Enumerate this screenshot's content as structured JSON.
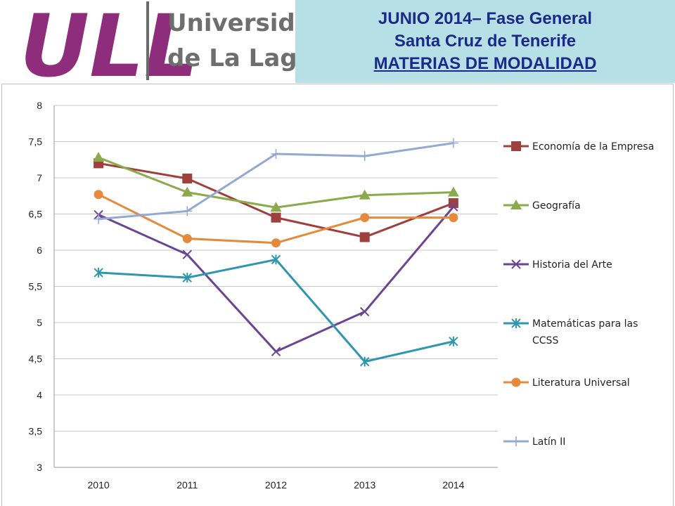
{
  "header": {
    "logo_mark": "ULL",
    "logo_line1": "Universidad",
    "logo_line2": "de La Laguna",
    "title_line1": "JUNIO 2014– Fase General",
    "title_line2": "Santa Cruz de Tenerife",
    "title_line3": "MATERIAS DE MODALIDAD"
  },
  "colors": {
    "logo_purple": "#8e2d7c",
    "header_bg": "#b7e0e6",
    "header_text": "#1b2a8a"
  },
  "chart_data": {
    "type": "line",
    "categories": [
      "2010",
      "2011",
      "2012",
      "2013",
      "2014"
    ],
    "ylim": [
      3,
      8
    ],
    "yticks": [
      "3",
      "3,5",
      "4",
      "4,5",
      "5",
      "5,5",
      "6",
      "6,5",
      "7",
      "7,5",
      "8"
    ],
    "grid": true,
    "legend_position": "right",
    "series": [
      {
        "name": "Economía de la Empresa",
        "values": [
          7.2,
          6.99,
          6.45,
          6.18,
          6.65
        ],
        "color": "#a0403d",
        "marker": "square"
      },
      {
        "name": "Geografía",
        "values": [
          7.28,
          6.8,
          6.59,
          6.76,
          6.8
        ],
        "color": "#8aaa4b",
        "marker": "triangle"
      },
      {
        "name": "Historia del Arte",
        "values": [
          6.49,
          5.94,
          4.6,
          5.15,
          6.6
        ],
        "color": "#6b4592",
        "marker": "x"
      },
      {
        "name": "Matemáticas para las CCSS",
        "values": [
          5.69,
          5.62,
          5.87,
          4.46,
          4.74
        ],
        "color": "#2e96ae",
        "marker": "star"
      },
      {
        "name": "Literatura Universal",
        "values": [
          6.77,
          6.16,
          6.1,
          6.45,
          6.45
        ],
        "color": "#e58a3b",
        "marker": "circle"
      },
      {
        "name": "Latín II",
        "values": [
          6.43,
          6.54,
          7.33,
          7.3,
          7.48
        ],
        "color": "#93a9d3",
        "marker": "plus"
      }
    ]
  }
}
